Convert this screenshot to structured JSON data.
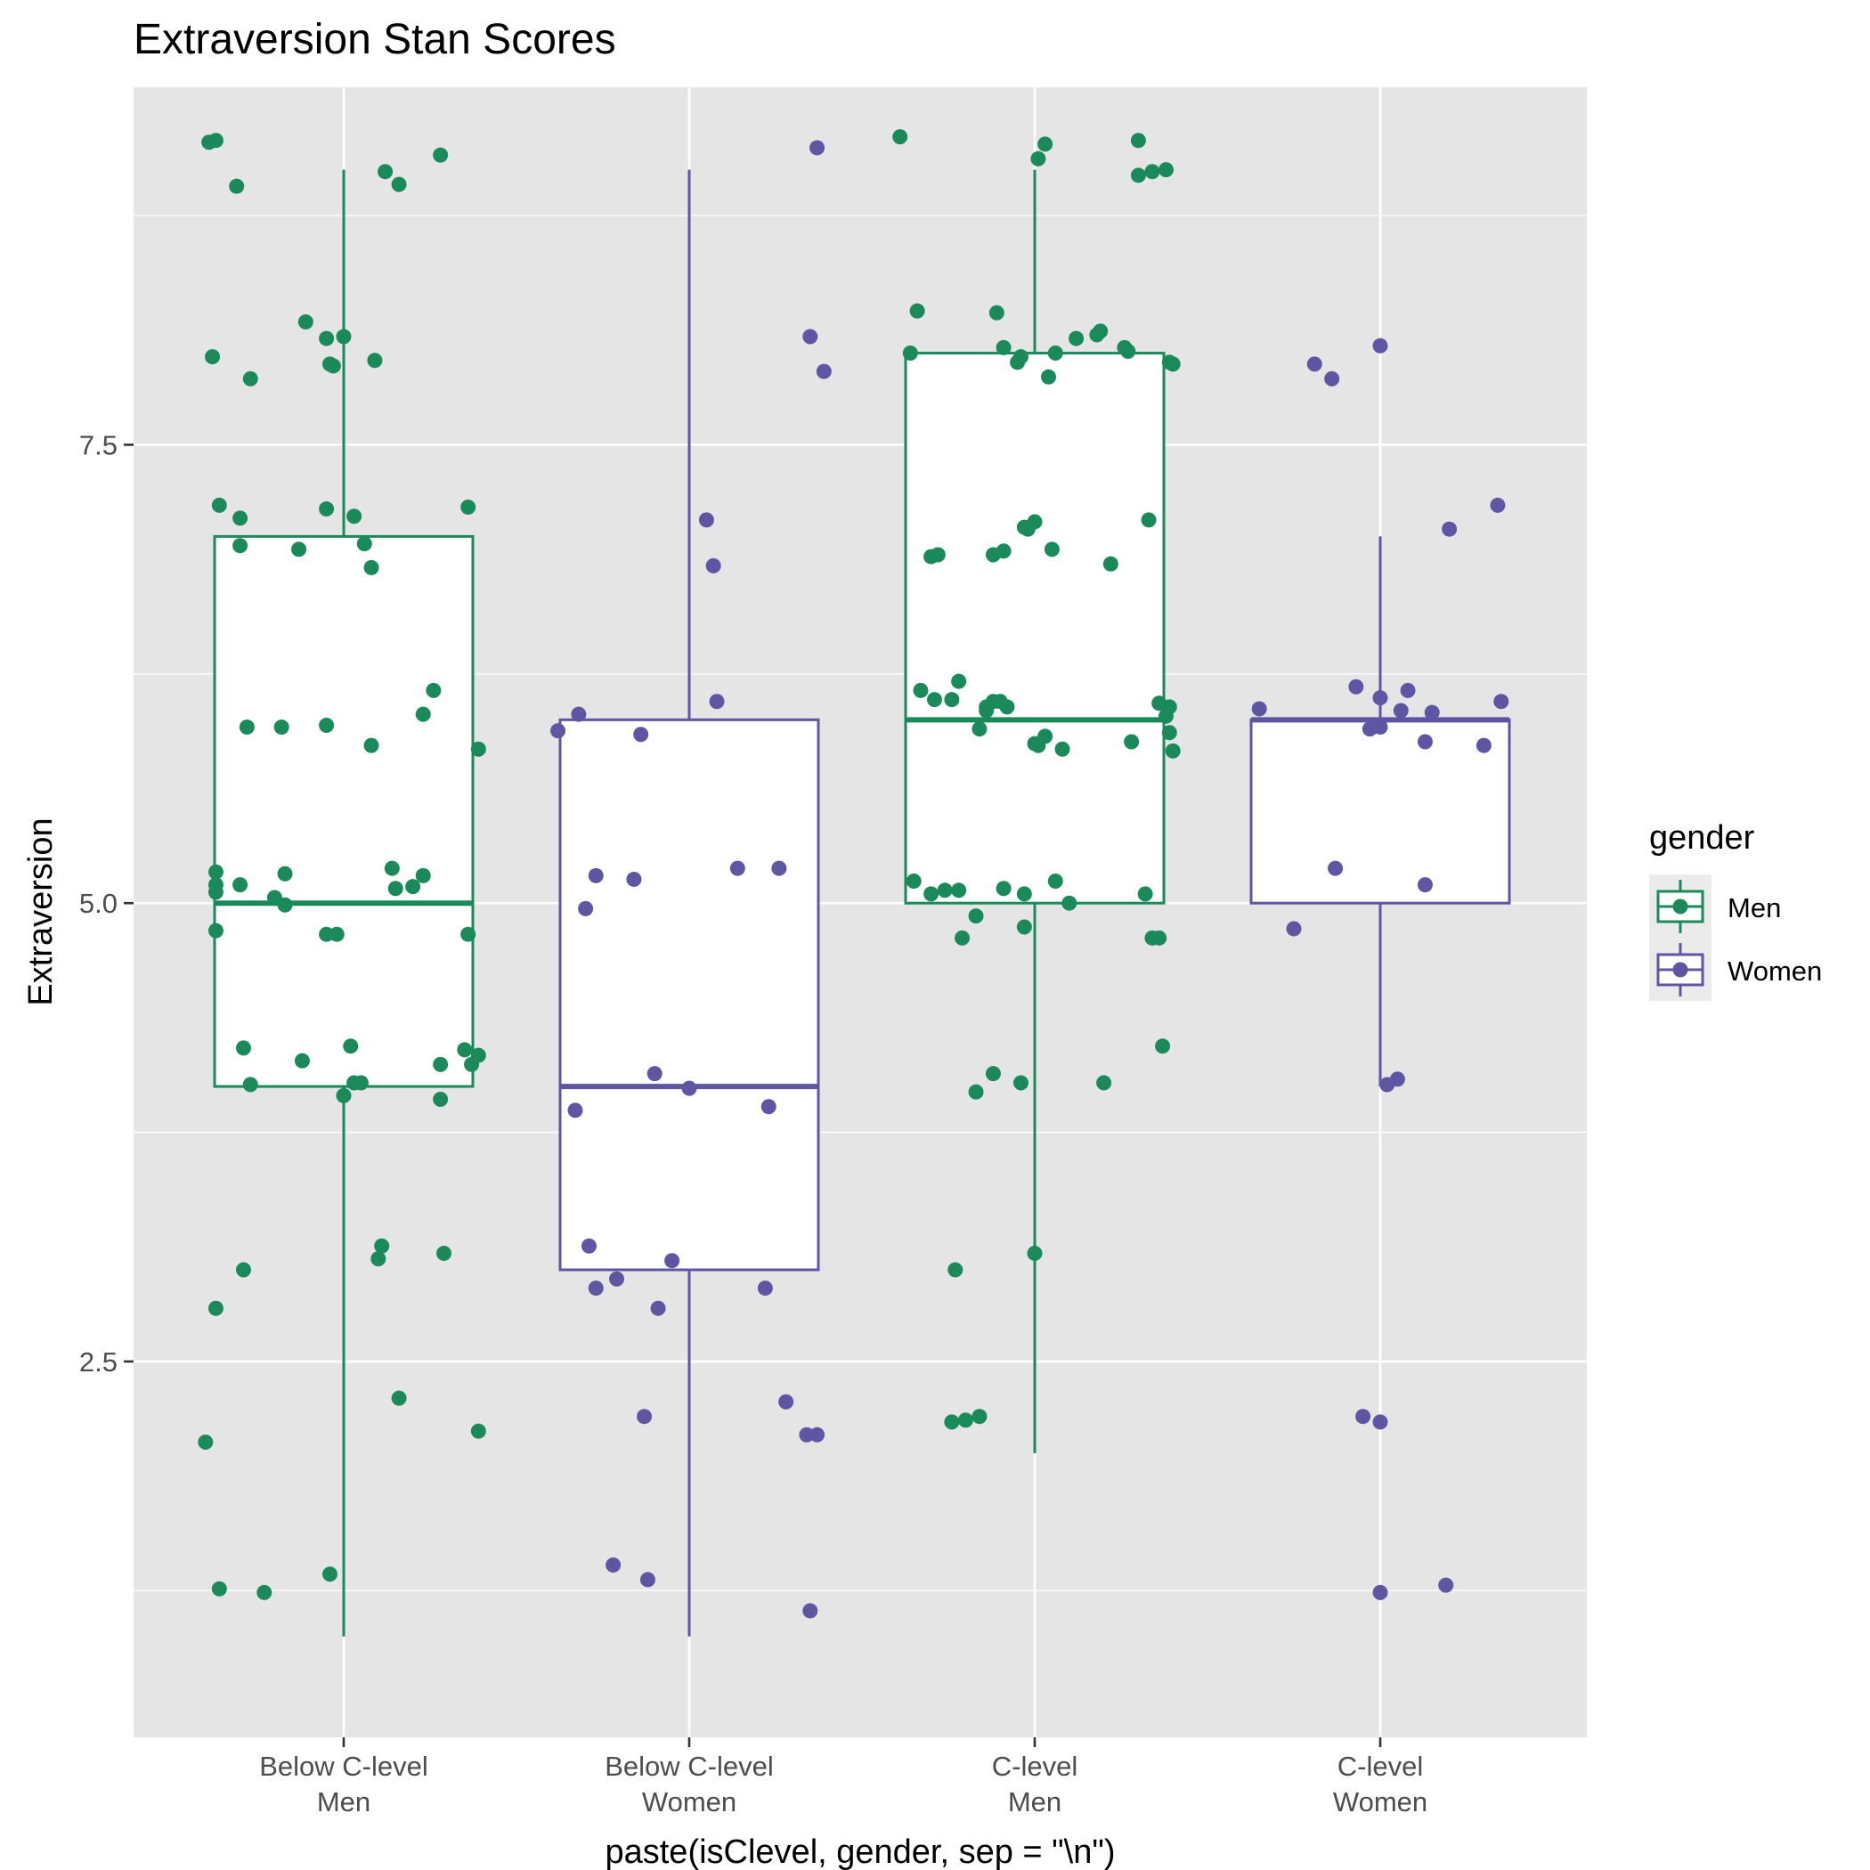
{
  "chart_data": {
    "type": "boxplot",
    "title": "Extraversion Stan Scores",
    "xlabel": "paste(isClevel, gender, sep = \"\\n\")",
    "ylabel": "Extraversion",
    "ylim": [
      0.45,
      9.45
    ],
    "yticks": [
      2.5,
      5.0,
      7.5
    ],
    "ytick_labels": [
      "2.5",
      "5.0",
      "7.5"
    ],
    "grid": true,
    "legend": {
      "title": "gender",
      "position": "right",
      "entries": [
        {
          "label": "Men",
          "color": "#1b8a5a"
        },
        {
          "label": "Women",
          "color": "#5e56a3"
        }
      ]
    },
    "categories": [
      {
        "label_line1": "Below C-level",
        "label_line2": "Men",
        "gender": "Men",
        "box": {
          "lower_whisker": 1,
          "q1": 4,
          "median": 5,
          "q3": 7,
          "upper_whisker": 9
        },
        "points": [
          [
            -0.39,
            9.15
          ],
          [
            -0.37,
            9.16
          ],
          [
            -0.31,
            8.91
          ],
          [
            -0.38,
            7.98
          ],
          [
            -0.27,
            7.86
          ],
          [
            -0.11,
            8.17
          ],
          [
            -0.05,
            8.08
          ],
          [
            0.0,
            8.09
          ],
          [
            -0.04,
            7.94
          ],
          [
            -0.03,
            7.93
          ],
          [
            0.09,
            7.96
          ],
          [
            0.12,
            8.99
          ],
          [
            0.16,
            8.92
          ],
          [
            0.28,
            9.08
          ],
          [
            -0.36,
            7.17
          ],
          [
            -0.3,
            7.1
          ],
          [
            -0.3,
            6.95
          ],
          [
            -0.13,
            6.93
          ],
          [
            -0.05,
            7.15
          ],
          [
            0.03,
            7.11
          ],
          [
            0.06,
            6.96
          ],
          [
            0.08,
            6.83
          ],
          [
            0.36,
            7.16
          ],
          [
            -0.28,
            5.96
          ],
          [
            -0.18,
            5.96
          ],
          [
            -0.05,
            5.97
          ],
          [
            0.08,
            5.86
          ],
          [
            0.23,
            6.03
          ],
          [
            0.26,
            6.16
          ],
          [
            0.39,
            5.84
          ],
          [
            -0.37,
            5.17
          ],
          [
            -0.37,
            5.1
          ],
          [
            -0.37,
            5.06
          ],
          [
            -0.3,
            5.1
          ],
          [
            -0.2,
            5.03
          ],
          [
            -0.17,
            5.16
          ],
          [
            -0.17,
            4.99
          ],
          [
            -0.05,
            4.83
          ],
          [
            -0.02,
            4.83
          ],
          [
            0.14,
            5.19
          ],
          [
            0.15,
            5.08
          ],
          [
            0.2,
            5.09
          ],
          [
            0.23,
            5.15
          ],
          [
            0.36,
            4.83
          ],
          [
            -0.37,
            4.85
          ],
          [
            -0.29,
            4.21
          ],
          [
            -0.27,
            4.01
          ],
          [
            -0.12,
            4.14
          ],
          [
            0.0,
            3.95
          ],
          [
            0.02,
            4.22
          ],
          [
            0.03,
            4.02
          ],
          [
            0.05,
            4.02
          ],
          [
            0.28,
            4.12
          ],
          [
            0.35,
            4.2
          ],
          [
            0.37,
            4.12
          ],
          [
            0.39,
            4.17
          ],
          [
            0.28,
            3.93
          ],
          [
            -0.29,
            3.0
          ],
          [
            -0.37,
            2.79
          ],
          [
            0.1,
            3.06
          ],
          [
            0.11,
            3.13
          ],
          [
            0.29,
            3.09
          ],
          [
            0.16,
            2.3
          ],
          [
            -0.4,
            2.06
          ],
          [
            0.39,
            2.12
          ],
          [
            -0.36,
            1.26
          ],
          [
            -0.23,
            1.24
          ],
          [
            -0.04,
            1.34
          ]
        ]
      },
      {
        "label_line1": "Below C-level",
        "label_line2": "Women",
        "gender": "Women",
        "box": {
          "lower_whisker": 1,
          "q1": 3,
          "median": 4,
          "q3": 6,
          "upper_whisker": 9
        },
        "points": [
          [
            0.37,
            9.12
          ],
          [
            0.35,
            8.09
          ],
          [
            0.39,
            7.9
          ],
          [
            0.05,
            7.09
          ],
          [
            0.07,
            6.84
          ],
          [
            0.08,
            6.1
          ],
          [
            -0.32,
            6.03
          ],
          [
            -0.38,
            5.94
          ],
          [
            -0.14,
            5.92
          ],
          [
            -0.27,
            5.15
          ],
          [
            -0.3,
            4.97
          ],
          [
            -0.16,
            5.13
          ],
          [
            0.14,
            5.19
          ],
          [
            0.26,
            5.19
          ],
          [
            -0.1,
            4.07
          ],
          [
            0.0,
            3.99
          ],
          [
            -0.33,
            3.87
          ],
          [
            0.23,
            3.89
          ],
          [
            -0.29,
            3.13
          ],
          [
            -0.05,
            3.05
          ],
          [
            -0.27,
            2.9
          ],
          [
            -0.21,
            2.95
          ],
          [
            -0.09,
            2.79
          ],
          [
            0.22,
            2.9
          ],
          [
            0.28,
            2.28
          ],
          [
            -0.13,
            2.2
          ],
          [
            0.34,
            2.1
          ],
          [
            0.37,
            2.1
          ],
          [
            -0.22,
            1.39
          ],
          [
            -0.12,
            1.31
          ],
          [
            0.35,
            1.14
          ]
        ]
      },
      {
        "label_line1": "C-level",
        "label_line2": "Men",
        "gender": "Men",
        "box": {
          "lower_whisker": 2,
          "q1": 5,
          "median": 6,
          "q3": 8,
          "upper_whisker": 9
        },
        "points": [
          [
            -0.39,
            9.18
          ],
          [
            0.03,
            9.14
          ],
          [
            0.01,
            9.06
          ],
          [
            0.3,
            9.16
          ],
          [
            0.3,
            8.97
          ],
          [
            0.34,
            8.99
          ],
          [
            0.38,
            9.0
          ],
          [
            -0.34,
            8.23
          ],
          [
            -0.11,
            8.22
          ],
          [
            0.12,
            8.08
          ],
          [
            0.18,
            8.1
          ],
          [
            0.19,
            8.12
          ],
          [
            -0.36,
            8.0
          ],
          [
            -0.09,
            8.03
          ],
          [
            -0.05,
            7.95
          ],
          [
            -0.04,
            7.98
          ],
          [
            0.06,
            8.0
          ],
          [
            0.04,
            7.87
          ],
          [
            0.26,
            8.03
          ],
          [
            0.27,
            8.01
          ],
          [
            0.39,
            7.95
          ],
          [
            0.4,
            7.94
          ],
          [
            -0.03,
            7.05
          ],
          [
            -0.02,
            7.04
          ],
          [
            0.0,
            7.08
          ],
          [
            0.05,
            6.93
          ],
          [
            -0.3,
            6.89
          ],
          [
            -0.28,
            6.9
          ],
          [
            -0.12,
            6.9
          ],
          [
            -0.09,
            6.92
          ],
          [
            0.22,
            6.85
          ],
          [
            0.33,
            7.09
          ],
          [
            -0.33,
            6.16
          ],
          [
            -0.22,
            6.21
          ],
          [
            -0.29,
            6.11
          ],
          [
            -0.24,
            6.11
          ],
          [
            -0.12,
            6.1
          ],
          [
            -0.14,
            6.07
          ],
          [
            -0.14,
            6.05
          ],
          [
            -0.1,
            6.1
          ],
          [
            -0.08,
            6.07
          ],
          [
            -0.16,
            5.95
          ],
          [
            0.03,
            5.91
          ],
          [
            0.0,
            5.87
          ],
          [
            0.01,
            5.86
          ],
          [
            0.08,
            5.84
          ],
          [
            0.36,
            6.09
          ],
          [
            0.38,
            6.02
          ],
          [
            0.39,
            6.07
          ],
          [
            0.39,
            5.93
          ],
          [
            0.28,
            5.88
          ],
          [
            0.4,
            5.83
          ],
          [
            -0.35,
            5.12
          ],
          [
            -0.3,
            5.05
          ],
          [
            -0.26,
            5.07
          ],
          [
            -0.22,
            5.07
          ],
          [
            -0.09,
            5.08
          ],
          [
            -0.03,
            5.05
          ],
          [
            0.06,
            5.12
          ],
          [
            0.1,
            5.0
          ],
          [
            0.32,
            5.05
          ],
          [
            -0.17,
            4.93
          ],
          [
            -0.21,
            4.81
          ],
          [
            -0.03,
            4.87
          ],
          [
            0.34,
            4.81
          ],
          [
            0.36,
            4.81
          ],
          [
            -0.12,
            4.07
          ],
          [
            -0.17,
            3.97
          ],
          [
            -0.04,
            4.02
          ],
          [
            0.2,
            4.02
          ],
          [
            0.37,
            4.22
          ],
          [
            -0.23,
            3.0
          ],
          [
            0.0,
            3.09
          ],
          [
            -0.16,
            2.2
          ],
          [
            -0.2,
            2.18
          ],
          [
            -0.24,
            2.17
          ]
        ]
      },
      {
        "label_line1": "C-level",
        "label_line2": "Women",
        "gender": "Women",
        "box": {
          "lower_whisker": 4,
          "q1": 5,
          "median": 6,
          "q3": 6,
          "upper_whisker": 7
        },
        "points": [
          [
            0.0,
            8.04
          ],
          [
            -0.19,
            7.94
          ],
          [
            -0.14,
            7.86
          ],
          [
            0.34,
            7.17
          ],
          [
            0.2,
            7.04
          ],
          [
            -0.35,
            6.06
          ],
          [
            -0.07,
            6.18
          ],
          [
            0.0,
            6.12
          ],
          [
            0.08,
            6.16
          ],
          [
            0.06,
            6.05
          ],
          [
            0.15,
            6.04
          ],
          [
            0.35,
            6.1
          ],
          [
            -0.03,
            5.95
          ],
          [
            0.0,
            5.96
          ],
          [
            0.13,
            5.88
          ],
          [
            0.3,
            5.86
          ],
          [
            -0.13,
            5.19
          ],
          [
            0.13,
            5.1
          ],
          [
            -0.25,
            4.86
          ],
          [
            0.02,
            4.01
          ],
          [
            0.05,
            4.04
          ],
          [
            -0.05,
            2.2
          ],
          [
            0.0,
            2.17
          ],
          [
            0.19,
            1.28
          ],
          [
            0.0,
            1.24
          ]
        ]
      }
    ]
  }
}
